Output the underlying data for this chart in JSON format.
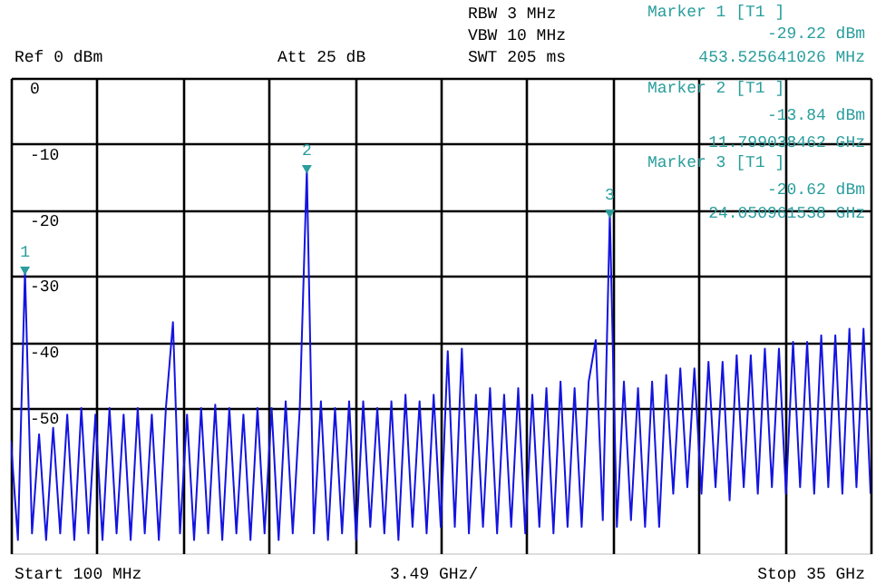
{
  "chart_data": {
    "type": "line",
    "categories": [
      null,
      null,
      null,
      null,
      null,
      null,
      null,
      null,
      null,
      null,
      null,
      null,
      null,
      null,
      null,
      null,
      null,
      null,
      null,
      null,
      null,
      null,
      null,
      null,
      null,
      null,
      null,
      null,
      null,
      null,
      null,
      null,
      null,
      null,
      null,
      null,
      null,
      null,
      null,
      null,
      null,
      null,
      null,
      null,
      null,
      null,
      null,
      null,
      null,
      null,
      null,
      null,
      null,
      null,
      null,
      null,
      null,
      null,
      null,
      null,
      null,
      null,
      null,
      null,
      null,
      null,
      null,
      null,
      null,
      null,
      null,
      null,
      null,
      null,
      null,
      null,
      null,
      null,
      null,
      null,
      null,
      null,
      null,
      null,
      null,
      null,
      null,
      null,
      null,
      null,
      null,
      null,
      null,
      null,
      null,
      null,
      null,
      null,
      null,
      null,
      null,
      null,
      null,
      null,
      null,
      null,
      null,
      null,
      null,
      null,
      null,
      null,
      null,
      null,
      null,
      null,
      null,
      null,
      null,
      null,
      null,
      null,
      null
    ],
    "series": [
      {
        "color": "#1414e0",
        "values": [
          -55,
          -70,
          -29.22,
          -69,
          -54,
          -70,
          -53,
          -69,
          -51,
          -70,
          -50,
          -69,
          -51,
          -70,
          -50,
          -69,
          -51,
          -70,
          -50,
          -69,
          -51,
          -70,
          -50,
          -37,
          -69,
          -51,
          -70,
          -50,
          -69,
          -49.5,
          -70,
          -50,
          -69,
          -51,
          -70,
          -50,
          -69,
          -50,
          -70,
          -49,
          -69,
          -50,
          -13.84,
          -69,
          -49,
          -70,
          -50,
          -69,
          -49,
          -70,
          -49,
          -68,
          -50,
          -69,
          -49,
          -70,
          -48,
          -68,
          -49,
          -69,
          -48,
          -68,
          -41.4,
          -68,
          -41,
          -69,
          -48,
          -68,
          -47,
          -69,
          -48,
          -68,
          -47,
          -69,
          -48,
          -68,
          -47,
          -69,
          -46,
          -68,
          -47,
          -68,
          -46,
          -39.7,
          -67,
          -20.62,
          -68,
          -46,
          -67,
          -47,
          -68,
          -46,
          -68,
          -45,
          -63,
          -44,
          -62,
          -44,
          -63,
          -43,
          -62,
          -43,
          -64,
          -42,
          -62,
          -42,
          -63,
          -41,
          -62,
          -41,
          -63,
          -40,
          -62,
          -40,
          -63,
          -39,
          -62,
          -39,
          -63,
          -38,
          -62,
          -38,
          -63
        ]
      },
      {
        "type": "scatter",
        "color": "#2a9d9d",
        "marker": "triangle",
        "values": [
          null,
          null,
          -29.22,
          null,
          null,
          null,
          null,
          null,
          null,
          null,
          null,
          null,
          null,
          null,
          null,
          null,
          null,
          null,
          null,
          null,
          null,
          null,
          null,
          null,
          null,
          null,
          null,
          null,
          null,
          null,
          null,
          null,
          null,
          null,
          null,
          null,
          null,
          null,
          null,
          null,
          null,
          null,
          -13.84,
          null,
          null,
          null,
          null,
          null,
          null,
          null,
          null,
          null,
          null,
          null,
          null,
          null,
          null,
          null,
          null,
          null,
          null,
          null,
          null,
          null,
          null,
          null,
          null,
          null,
          null,
          null,
          null,
          null,
          null,
          null,
          null,
          null,
          null,
          null,
          null,
          null,
          null,
          null,
          null,
          null,
          null,
          -20.62,
          null,
          null,
          null,
          null,
          null,
          null,
          null,
          null,
          null,
          null,
          null,
          null,
          null,
          null,
          null,
          null,
          null,
          null,
          null,
          null,
          null,
          null,
          null,
          null,
          null,
          null,
          null,
          null,
          null,
          null,
          null,
          null,
          null,
          null,
          null,
          null,
          null
        ]
      }
    ],
    "ylim": [
      -72,
      0
    ],
    "yticks": [
      0,
      -10,
      -20,
      -30,
      -40,
      -50
    ],
    "tick_labels": "y",
    "grid": true,
    "annotations": [
      "Ref 0 dBm",
      "Att 25 dB",
      "RBW 3 MHz",
      "VBW 10 MHz",
      "SWT 205 ms",
      "Marker 1 [T1 ]",
      "-29.22 dBm",
      "453.525641026 MHz",
      "Marker 2 [T1 ]",
      "-13.84 dBm",
      "11.799038462 GHz",
      "Marker 3 [T1 ]",
      "-20.62 dBm",
      "24.050961538 GHz",
      "Start 100 MHz",
      "3.49 GHz/",
      "Stop 35 GHz",
      {
        "text": "1",
        "y": -29.22
      },
      {
        "text": "2",
        "y": -13.84
      },
      {
        "text": "3",
        "y": -20.62
      }
    ]
  }
}
